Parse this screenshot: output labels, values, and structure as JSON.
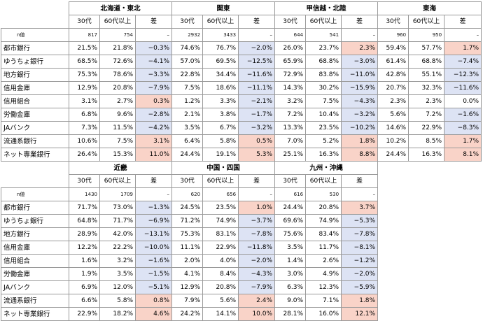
{
  "column_headers": {
    "age30": "30代",
    "age60": "60代以上",
    "diff": "差"
  },
  "n_label": "n値",
  "bank_types": [
    "都市銀行",
    "ゆうちょ銀行",
    "地方銀行",
    "信用金庫",
    "信用組合",
    "労働金庫",
    "JAバンク",
    "流通系銀行",
    "ネット専業銀行"
  ],
  "top": {
    "regions": [
      {
        "name": "北海道・東北",
        "n": [
          "817",
          "754",
          "–"
        ],
        "rows": [
          [
            "21.5%",
            "21.8%",
            "−0.3%"
          ],
          [
            "68.5%",
            "72.6%",
            "−4.1%"
          ],
          [
            "75.3%",
            "78.6%",
            "−3.3%"
          ],
          [
            "12.9%",
            "20.8%",
            "−7.9%"
          ],
          [
            "3.1%",
            "2.7%",
            "0.3%"
          ],
          [
            "6.8%",
            "9.6%",
            "−2.8%"
          ],
          [
            "7.3%",
            "11.5%",
            "−4.2%"
          ],
          [
            "10.6%",
            "7.5%",
            "3.1%"
          ],
          [
            "26.4%",
            "15.3%",
            "11.0%"
          ]
        ]
      },
      {
        "name": "関東",
        "n": [
          "2932",
          "3433",
          "–"
        ],
        "rows": [
          [
            "74.6%",
            "76.7%",
            "−2.0%"
          ],
          [
            "57.0%",
            "69.5%",
            "−12.5%"
          ],
          [
            "22.8%",
            "34.4%",
            "−11.6%"
          ],
          [
            "7.5%",
            "18.6%",
            "−11.1%"
          ],
          [
            "1.2%",
            "3.3%",
            "−2.1%"
          ],
          [
            "2.1%",
            "3.8%",
            "−1.7%"
          ],
          [
            "3.5%",
            "6.7%",
            "−3.2%"
          ],
          [
            "6.4%",
            "5.8%",
            "0.5%"
          ],
          [
            "24.4%",
            "19.1%",
            "5.3%"
          ]
        ]
      },
      {
        "name": "甲信越・北陸",
        "n": [
          "644",
          "541",
          "–"
        ],
        "rows": [
          [
            "26.0%",
            "23.7%",
            "2.3%"
          ],
          [
            "65.9%",
            "68.8%",
            "−3.0%"
          ],
          [
            "72.9%",
            "83.8%",
            "−11.0%"
          ],
          [
            "14.3%",
            "30.2%",
            "−15.9%"
          ],
          [
            "3.2%",
            "7.5%",
            "−4.3%"
          ],
          [
            "7.2%",
            "10.4%",
            "−3.2%"
          ],
          [
            "13.3%",
            "23.5%",
            "−10.2%"
          ],
          [
            "7.0%",
            "5.2%",
            "1.8%"
          ],
          [
            "25.1%",
            "16.3%",
            "8.8%"
          ]
        ]
      },
      {
        "name": "東海",
        "n": [
          "960",
          "950",
          "–"
        ],
        "rows": [
          [
            "59.4%",
            "57.7%",
            "1.7%"
          ],
          [
            "61.4%",
            "68.8%",
            "−7.4%"
          ],
          [
            "42.8%",
            "55.1%",
            "−12.3%"
          ],
          [
            "20.7%",
            "32.3%",
            "−11.6%"
          ],
          [
            "2.3%",
            "2.3%",
            "0.0%"
          ],
          [
            "5.6%",
            "7.2%",
            "−1.6%"
          ],
          [
            "14.6%",
            "22.9%",
            "−8.3%"
          ],
          [
            "10.2%",
            "8.5%",
            "1.7%"
          ],
          [
            "24.4%",
            "16.3%",
            "8.1%"
          ]
        ]
      }
    ]
  },
  "bottom": {
    "regions": [
      {
        "name": "近畿",
        "n": [
          "1430",
          "1709",
          "–"
        ],
        "rows": [
          [
            "71.7%",
            "73.0%",
            "−1.3%"
          ],
          [
            "64.8%",
            "71.7%",
            "−6.9%"
          ],
          [
            "28.9%",
            "42.0%",
            "−13.1%"
          ],
          [
            "12.2%",
            "22.2%",
            "−10.0%"
          ],
          [
            "1.6%",
            "3.2%",
            "−1.6%"
          ],
          [
            "1.9%",
            "3.5%",
            "−1.5%"
          ],
          [
            "6.9%",
            "12.0%",
            "−5.1%"
          ],
          [
            "6.6%",
            "5.8%",
            "0.8%"
          ],
          [
            "22.9%",
            "18.2%",
            "4.6%"
          ]
        ]
      },
      {
        "name": "中国・四国",
        "n": [
          "620",
          "656",
          "–"
        ],
        "rows": [
          [
            "24.5%",
            "23.5%",
            "1.0%"
          ],
          [
            "71.2%",
            "74.9%",
            "−3.7%"
          ],
          [
            "75.3%",
            "83.1%",
            "−7.8%"
          ],
          [
            "11.1%",
            "22.9%",
            "−11.8%"
          ],
          [
            "2.0%",
            "4.0%",
            "−2.0%"
          ],
          [
            "4.1%",
            "8.4%",
            "−4.3%"
          ],
          [
            "12.9%",
            "20.8%",
            "−7.9%"
          ],
          [
            "7.9%",
            "5.6%",
            "2.4%"
          ],
          [
            "24.2%",
            "14.1%",
            "10.0%"
          ]
        ]
      },
      {
        "name": "九州・沖縄",
        "n": [
          "616",
          "530",
          "–"
        ],
        "rows": [
          [
            "24.4%",
            "20.8%",
            "3.7%"
          ],
          [
            "69.6%",
            "74.9%",
            "−5.3%"
          ],
          [
            "75.6%",
            "83.4%",
            "−7.8%"
          ],
          [
            "3.5%",
            "11.7%",
            "−8.1%"
          ],
          [
            "1.4%",
            "2.6%",
            "−1.2%"
          ],
          [
            "3.0%",
            "4.9%",
            "−2.0%"
          ],
          [
            "6.3%",
            "12.3%",
            "−5.9%"
          ],
          [
            "9.0%",
            "7.1%",
            "1.8%"
          ],
          [
            "28.1%",
            "16.0%",
            "12.1%"
          ]
        ]
      }
    ]
  }
}
